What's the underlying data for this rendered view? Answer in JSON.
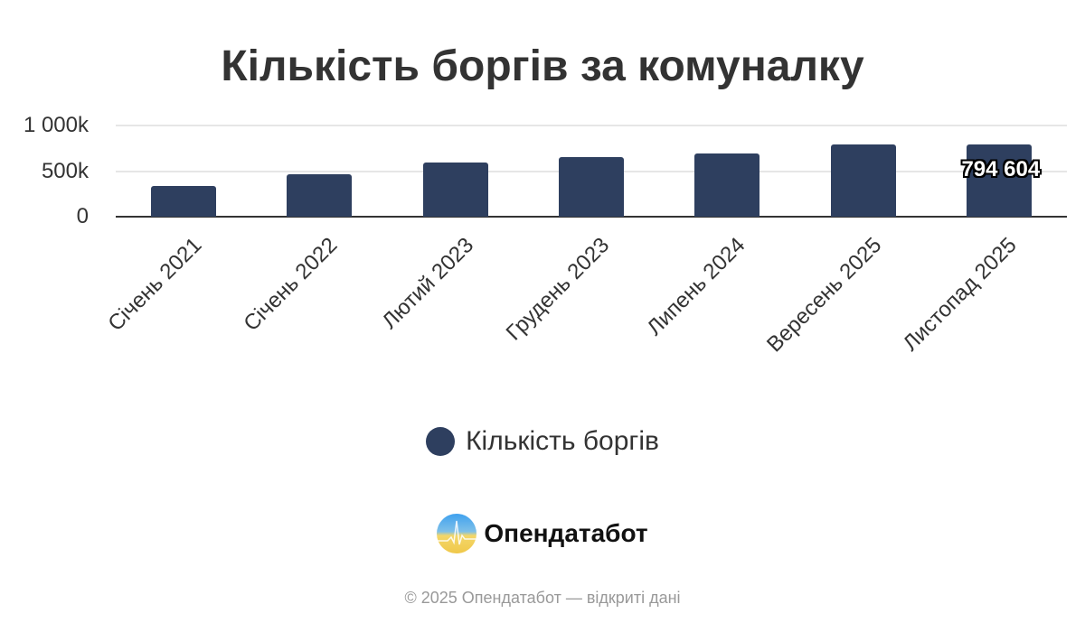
{
  "title": "Кількість боргів за комуналку",
  "chart_data": {
    "type": "bar",
    "title": "Кількість боргів за комуналку",
    "categories": [
      "Січень 2021",
      "Січень 2022",
      "Лютий 2023",
      "Грудень 2023",
      "Липень 2024",
      "Вересень 2025",
      "Листопад 2025"
    ],
    "series": [
      {
        "name": "Кількість боргів",
        "values": [
          335000,
          470000,
          590000,
          650000,
          690000,
          790000,
          794604
        ],
        "color": "#2e3f5f"
      }
    ],
    "data_labels": [
      {
        "index": 6,
        "text": "794 604"
      }
    ],
    "xlabel": "",
    "ylabel": "",
    "ylim": [
      0,
      1000000
    ],
    "y_ticks": [
      "0",
      "500k",
      "1 000k"
    ],
    "grid": true,
    "legend_position": "bottom"
  },
  "legend": {
    "label": "Кількість боргів"
  },
  "brand": {
    "name": "Опендатабот",
    "icon": "opendatabot-logo-icon"
  },
  "footer": "© 2025 Опендатабот — відкриті дані"
}
